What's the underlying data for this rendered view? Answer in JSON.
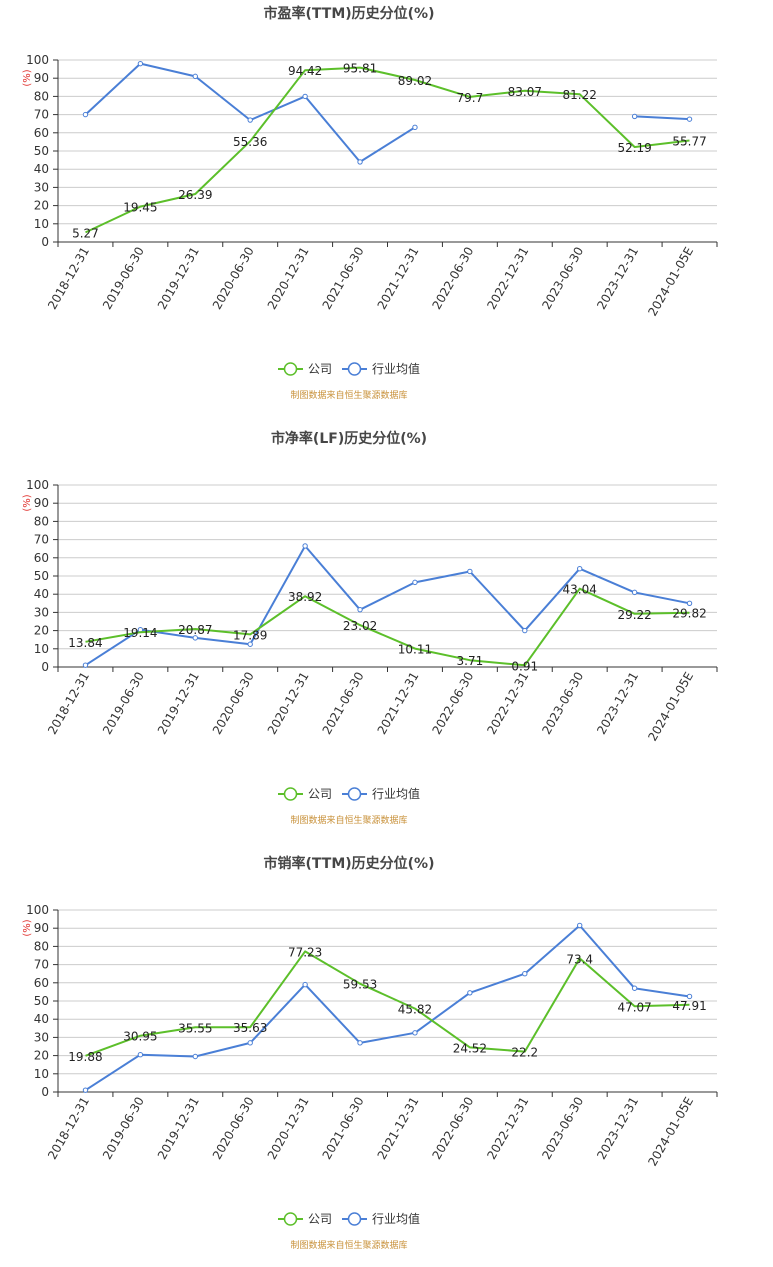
{
  "colors": {
    "company": "#5cbf2a",
    "industry": "#4a7fd6",
    "unit": "#e0312d",
    "source": "#c8913a",
    "grid": "#cccccc",
    "axis": "#333333"
  },
  "legend": {
    "company": "公司",
    "industry": "行业均值"
  },
  "chart_data": [
    {
      "type": "line",
      "title": "市盈率(TTM)历史分位(%)",
      "unit": "(%)",
      "source": "制图数据来自恒生聚源数据库",
      "categories": [
        "2018-12-31",
        "2019-06-30",
        "2019-12-31",
        "2020-06-30",
        "2020-12-31",
        "2021-06-30",
        "2021-12-31",
        "2022-06-30",
        "2022-12-31",
        "2023-06-30",
        "2023-12-31",
        "2024-01-05E"
      ],
      "ylim": [
        0,
        100
      ],
      "yticks": [
        "0",
        "10",
        "20",
        "30",
        "40",
        "50",
        "60",
        "70",
        "80",
        "90",
        "100"
      ],
      "grid": true,
      "legend_position": "bottom-center",
      "series": [
        {
          "name": "公司",
          "values": [
            5.27,
            19.45,
            26.39,
            55.36,
            94.42,
            95.81,
            89.02,
            79.7,
            83.07,
            81.22,
            52.19,
            55.77
          ],
          "labels": [
            "5.27",
            "19.45",
            "26.39",
            "55.36",
            "94.42",
            "95.81",
            "89.02",
            "79.7",
            "83.07",
            "81.22",
            "52.19",
            "55.77"
          ]
        },
        {
          "name": "行业均值",
          "values": [
            70,
            98,
            91,
            67,
            80,
            44,
            63,
            null,
            null,
            null,
            69,
            67.5
          ]
        }
      ]
    },
    {
      "type": "line",
      "title": "市净率(LF)历史分位(%)",
      "unit": "(%)",
      "source": "制图数据来自恒生聚源数据库",
      "categories": [
        "2018-12-31",
        "2019-06-30",
        "2019-12-31",
        "2020-06-30",
        "2020-12-31",
        "2021-06-30",
        "2021-12-31",
        "2022-06-30",
        "2022-12-31",
        "2023-06-30",
        "2023-12-31",
        "2024-01-05E"
      ],
      "ylim": [
        0,
        100
      ],
      "yticks": [
        "0",
        "10",
        "20",
        "30",
        "40",
        "50",
        "60",
        "70",
        "80",
        "90",
        "100"
      ],
      "grid": true,
      "legend_position": "bottom-center",
      "series": [
        {
          "name": "公司",
          "values": [
            13.84,
            19.14,
            20.87,
            17.89,
            38.92,
            23.02,
            10.11,
            3.71,
            0.91,
            43.04,
            29.22,
            29.82
          ],
          "labels": [
            "13.84",
            "19.14",
            "20.87",
            "17.89",
            "38.92",
            "23.02",
            "10.11",
            "3.71",
            "0.91",
            "43.04",
            "29.22",
            "29.82"
          ]
        },
        {
          "name": "行业均值",
          "values": [
            1,
            20.5,
            16,
            12.5,
            66.5,
            31.5,
            46.5,
            52.5,
            20,
            54,
            41,
            35
          ]
        }
      ]
    },
    {
      "type": "line",
      "title": "市销率(TTM)历史分位(%)",
      "unit": "(%)",
      "source": "制图数据来自恒生聚源数据库",
      "categories": [
        "2018-12-31",
        "2019-06-30",
        "2019-12-31",
        "2020-06-30",
        "2020-12-31",
        "2021-06-30",
        "2021-12-31",
        "2022-06-30",
        "2022-12-31",
        "2023-06-30",
        "2023-12-31",
        "2024-01-05E"
      ],
      "ylim": [
        0,
        100
      ],
      "yticks": [
        "0",
        "10",
        "20",
        "30",
        "40",
        "50",
        "60",
        "70",
        "80",
        "90",
        "100"
      ],
      "grid": true,
      "legend_position": "bottom-center",
      "series": [
        {
          "name": "公司",
          "values": [
            19.88,
            30.95,
            35.55,
            35.63,
            77.23,
            59.53,
            45.82,
            24.52,
            22.2,
            73.4,
            47.07,
            47.91
          ],
          "labels": [
            "19.88",
            "30.95",
            "35.55",
            "35.63",
            "77.23",
            "59.53",
            "45.82",
            "24.52",
            "22.2",
            "73.4",
            "47.07",
            "47.91"
          ]
        },
        {
          "name": "行业均值",
          "values": [
            1,
            20.5,
            19.5,
            27,
            59,
            27,
            32.5,
            54.5,
            65,
            91.5,
            57,
            52.5
          ]
        }
      ]
    }
  ]
}
